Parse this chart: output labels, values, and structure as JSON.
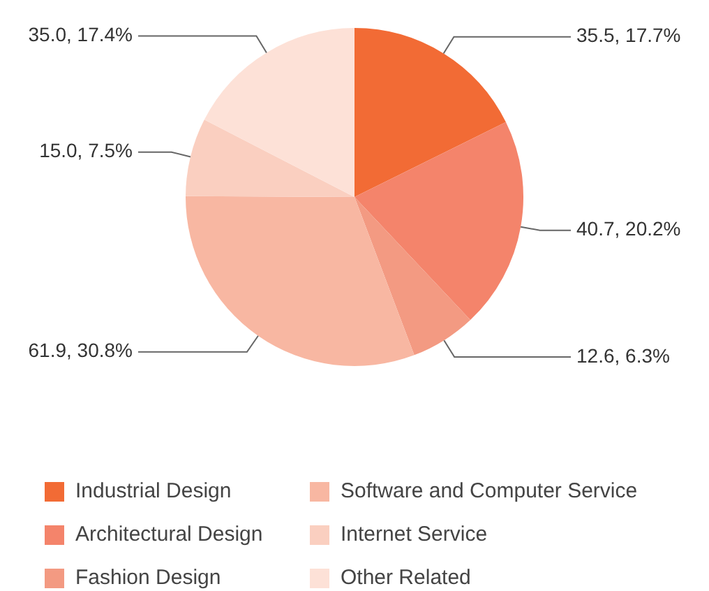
{
  "chart_data": {
    "type": "pie",
    "categories": [
      "Industrial Design",
      "Architectural Design",
      "Fashion Design",
      "Software and Computer Service",
      "Internet Service",
      "Other Related"
    ],
    "values": [
      35.5,
      40.7,
      12.6,
      61.9,
      15.0,
      35.0
    ],
    "colors": [
      "#f26b35",
      "#f4846b",
      "#f39a82",
      "#f8b7a2",
      "#facfc0",
      "#fde1d7"
    ],
    "value_labels": [
      "35.5, 17.7%",
      "40.7, 20.2%",
      "12.6, 6.3%",
      "61.9, 30.8%",
      "15.0, 7.5%",
      "35.0, 17.4%"
    ],
    "legend": "bottom"
  }
}
